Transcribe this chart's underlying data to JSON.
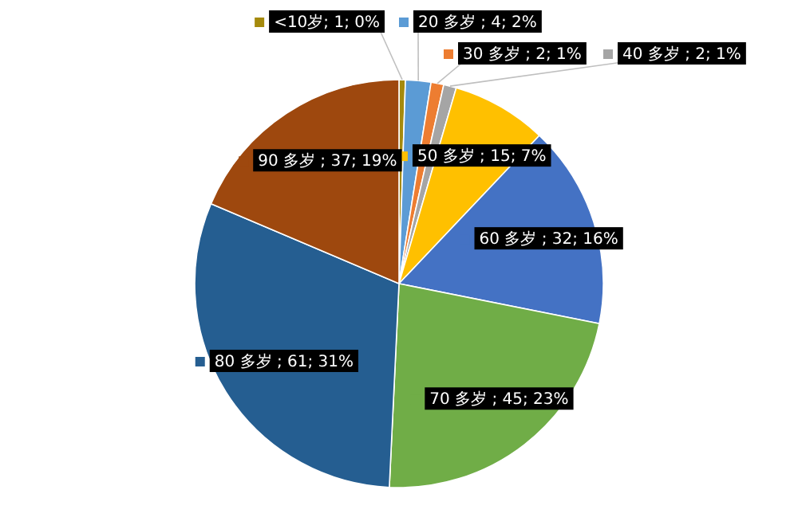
{
  "chart_data": {
    "type": "pie",
    "legend": "top",
    "categories": [
      "<10岁",
      "20 多岁",
      "30 多岁",
      "40 多岁",
      "50 多岁",
      "60 多岁",
      "70 多岁",
      "80 多岁",
      "90 多岁"
    ],
    "values": [
      1,
      4,
      2,
      2,
      15,
      32,
      45,
      61,
      37
    ],
    "colors": [
      "#a58a0c",
      "#5b9bd5",
      "#ed7d31",
      "#a5a5a5",
      "#ffc000",
      "#4472c4",
      "#70ad47",
      "#255e91",
      "#9e480e"
    ],
    "value_labels": [
      "; 1; 0%",
      " ; 4; 2%",
      " ; 2; 1%",
      " ; 2; 1%",
      " ; 15; 7%",
      " ; 32; 16%",
      " ; 45; 23%",
      " ; 61; 31%",
      " ; 37; 19%"
    ]
  }
}
